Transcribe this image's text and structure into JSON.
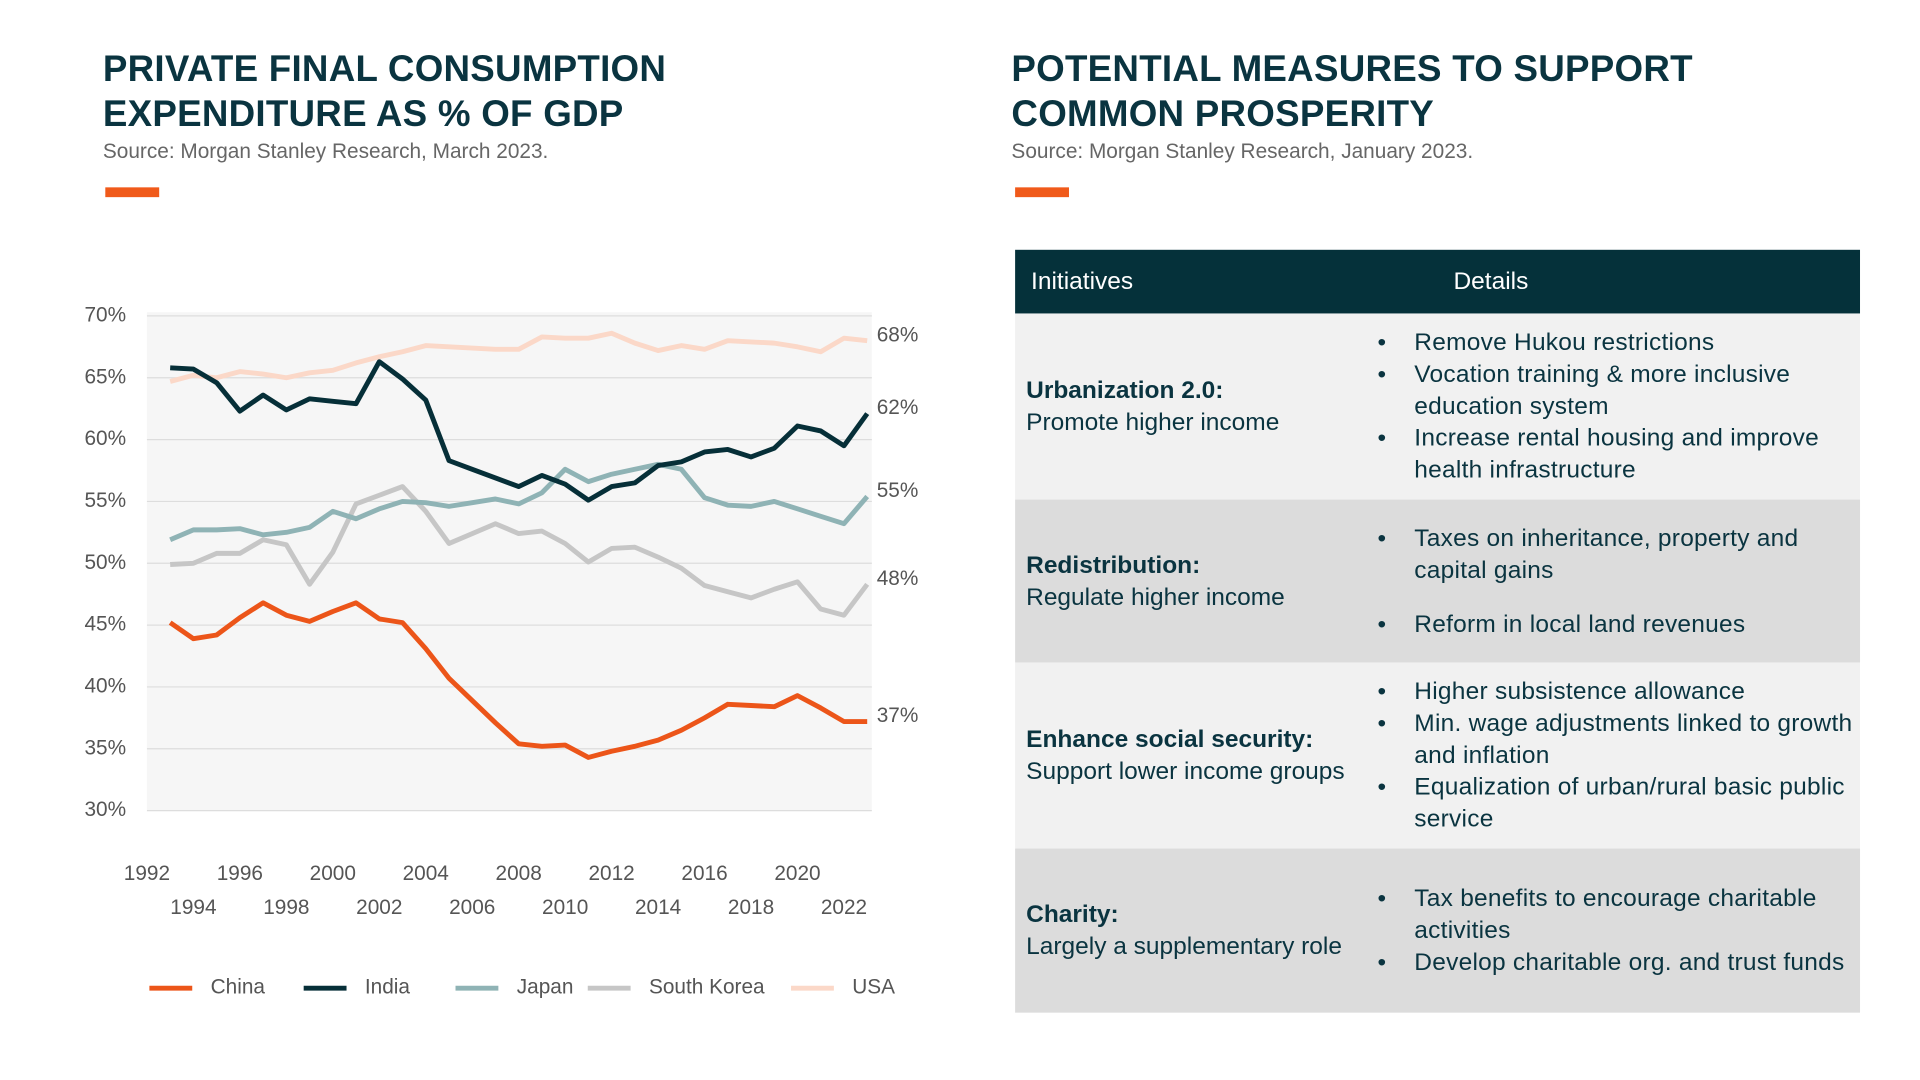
{
  "chart_data": {
    "type": "line",
    "title": "PRIVATE FINAL CONSUMPTION EXPENDITURE AS % OF GDP",
    "subtitle": "Source: Morgan Stanley Research, March 2023.",
    "x": [
      1993,
      1994,
      1995,
      1996,
      1997,
      1998,
      1999,
      2000,
      2001,
      2002,
      2003,
      2004,
      2005,
      2006,
      2007,
      2008,
      2009,
      2010,
      2011,
      2012,
      2013,
      2014,
      2015,
      2016,
      2017,
      2018,
      2019,
      2020,
      2021,
      2022,
      2023
    ],
    "xlim": [
      1992,
      2023.2
    ],
    "xticks": [
      1992,
      1994,
      1996,
      1998,
      2000,
      2002,
      2004,
      2006,
      2008,
      2010,
      2012,
      2014,
      2016,
      2018,
      2020,
      2022
    ],
    "ylim": [
      30,
      70
    ],
    "yticks": [
      {
        "value": 70,
        "label": "70%"
      },
      {
        "value": 65,
        "label": "65%"
      },
      {
        "value": 60,
        "label": "60%"
      },
      {
        "value": 55,
        "label": "55%"
      },
      {
        "value": 50,
        "label": "50%"
      },
      {
        "value": 45,
        "label": "45%"
      },
      {
        "value": 40,
        "label": "40%"
      },
      {
        "value": 35,
        "label": "35%"
      },
      {
        "value": 30,
        "label": "30%"
      }
    ],
    "grid": true,
    "series": [
      {
        "name": "China",
        "color": "#ec5519",
        "end_label": "37%",
        "values": [
          45.2,
          43.9,
          44.2,
          45.6,
          46.8,
          45.8,
          45.3,
          46.1,
          46.8,
          45.5,
          45.2,
          43.1,
          40.7,
          38.9,
          37.1,
          35.4,
          35.2,
          35.3,
          34.3,
          34.8,
          35.2,
          35.7,
          36.5,
          37.5,
          38.6,
          38.5,
          38.4,
          39.3,
          38.3,
          37.2,
          37.2
        ]
      },
      {
        "name": "India",
        "color": "#062f38",
        "end_label": "62%",
        "values": [
          65.8,
          65.7,
          64.6,
          62.3,
          63.6,
          62.4,
          63.3,
          63.1,
          62.9,
          66.3,
          64.9,
          63.2,
          58.3,
          57.6,
          56.9,
          56.2,
          57.1,
          56.4,
          55.1,
          56.2,
          56.5,
          57.9,
          58.2,
          59.0,
          59.2,
          58.6,
          59.3,
          61.1,
          60.7,
          59.5,
          62.1
        ]
      },
      {
        "name": "Japan",
        "color": "#8fb3b5",
        "end_label": "55%",
        "values": [
          51.9,
          52.7,
          52.7,
          52.8,
          52.3,
          52.5,
          52.9,
          54.2,
          53.6,
          54.4,
          55.0,
          54.9,
          54.6,
          54.9,
          55.2,
          54.8,
          55.7,
          57.6,
          56.6,
          57.2,
          57.6,
          58.0,
          57.6,
          55.3,
          54.7,
          54.6,
          55.0,
          54.4,
          53.8,
          53.2,
          55.4
        ]
      },
      {
        "name": "South Korea",
        "color": "#c6c6c6",
        "end_label": "48%",
        "values": [
          49.9,
          50.0,
          50.8,
          50.8,
          51.9,
          51.5,
          48.3,
          50.9,
          54.8,
          55.5,
          56.2,
          54.2,
          51.6,
          52.4,
          53.2,
          52.4,
          52.6,
          51.6,
          50.1,
          51.2,
          51.3,
          50.5,
          49.6,
          48.2,
          47.7,
          47.2,
          47.9,
          48.5,
          46.3,
          45.8,
          48.3
        ]
      },
      {
        "name": "USA",
        "color": "#fbd8c8",
        "end_label": "68%",
        "values": [
          64.7,
          65.2,
          65.0,
          65.5,
          65.3,
          65.0,
          65.4,
          65.6,
          66.2,
          66.7,
          67.1,
          67.6,
          67.5,
          67.4,
          67.3,
          67.3,
          68.3,
          68.2,
          68.2,
          68.6,
          67.8,
          67.2,
          67.6,
          67.3,
          68.0,
          67.9,
          67.8,
          67.5,
          67.1,
          68.2,
          68.0
        ]
      }
    ]
  },
  "table_section": {
    "title": "POTENTIAL MEASURES TO SUPPORT COMMON PROSPERITY",
    "subtitle": "Source: Morgan Stanley Research, January 2023.",
    "columns": [
      "Initiatives",
      "Details"
    ],
    "rows": [
      {
        "initiative": "Urbanization 2.0:",
        "description": "Promote higher income",
        "details": [
          "Remove Hukou restrictions",
          "Vocation training & more inclusive education system",
          "Increase rental housing and improve health infrastructure"
        ]
      },
      {
        "initiative": "Redistribution:",
        "description": "Regulate higher income",
        "details": [
          "Taxes on inheritance, property and capital gains",
          "Reform in local land revenues"
        ]
      },
      {
        "initiative": "Enhance social security:",
        "description": "Support lower income groups",
        "details": [
          "Higher subsistence allowance",
          "Min. wage adjustments linked to growth and inflation",
          "Equalization of urban/rural basic public service"
        ]
      },
      {
        "initiative": "Charity:",
        "description": "Largely a supplementary role",
        "details": [
          "Tax benefits to encourage charitable activities",
          "Develop charitable org. and trust funds"
        ]
      }
    ]
  }
}
